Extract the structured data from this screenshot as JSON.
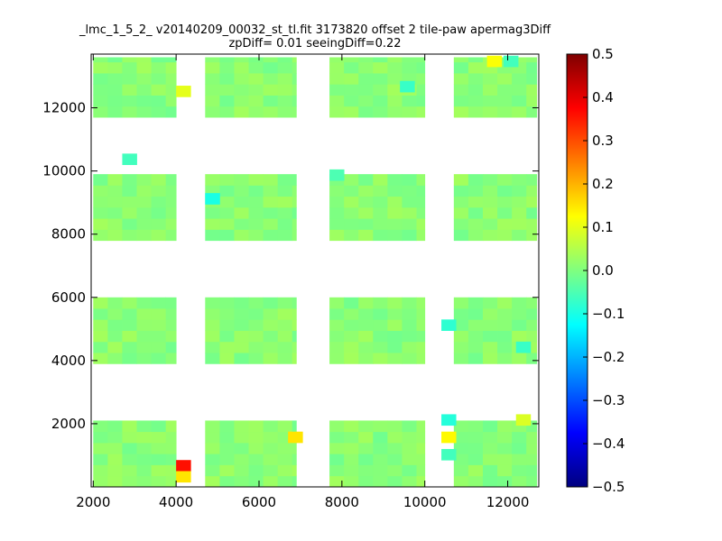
{
  "chart_data": {
    "type": "heatmap",
    "title": "_lmc_1_5_2_ v20140209_00032_st_tl.fit 3173820 offset 2 tile-paw apermag3Diff",
    "subtitle": "zpDiff= 0.01 seeingDiff=0.22",
    "xlabel": "",
    "ylabel": "",
    "xlim": [
      1950,
      12750
    ],
    "ylim": [
      0,
      13700
    ],
    "xticks": [
      2000,
      4000,
      6000,
      8000,
      10000,
      12000
    ],
    "yticks": [
      2000,
      4000,
      6000,
      8000,
      10000,
      12000
    ],
    "xticklabels": [
      "2000",
      "4000",
      "6000",
      "8000",
      "10000",
      "12000"
    ],
    "yticklabels": [
      "2000",
      "4000",
      "6000",
      "8000",
      "10000",
      "12000"
    ],
    "colorbar": {
      "min": -0.5,
      "max": 0.5,
      "ticks": [
        0.5,
        0.4,
        0.3,
        0.2,
        0.1,
        0.0,
        -0.1,
        -0.2,
        -0.3,
        -0.4,
        -0.5
      ],
      "ticklabels": [
        "0.5",
        "0.4",
        "0.3",
        "0.2",
        "0.1",
        "0.0",
        "−0.1",
        "−0.2",
        "−0.3",
        "−0.4",
        "−0.5"
      ],
      "colormap": "jet"
    },
    "cell_size": 350,
    "typical_value": 0.01,
    "blocks": [
      {
        "x": [
          2000,
          4000
        ],
        "y": [
          0,
          2100
        ]
      },
      {
        "x": [
          2000,
          4000
        ],
        "y": [
          3900,
          6000
        ]
      },
      {
        "x": [
          2000,
          4000
        ],
        "y": [
          7800,
          9900
        ]
      },
      {
        "x": [
          2000,
          4000
        ],
        "y": [
          11700,
          13600
        ]
      },
      {
        "x": [
          4700,
          6900
        ],
        "y": [
          0,
          2100
        ]
      },
      {
        "x": [
          4700,
          6900
        ],
        "y": [
          3900,
          6000
        ]
      },
      {
        "x": [
          4700,
          6900
        ],
        "y": [
          7800,
          9900
        ]
      },
      {
        "x": [
          4700,
          6900
        ],
        "y": [
          11700,
          13600
        ]
      },
      {
        "x": [
          7700,
          10000
        ],
        "y": [
          0,
          2100
        ]
      },
      {
        "x": [
          7700,
          10000
        ],
        "y": [
          3900,
          6000
        ]
      },
      {
        "x": [
          7700,
          10000
        ],
        "y": [
          7800,
          9900
        ]
      },
      {
        "x": [
          7700,
          10000
        ],
        "y": [
          11700,
          13600
        ]
      },
      {
        "x": [
          10700,
          12700
        ],
        "y": [
          0,
          2100
        ]
      },
      {
        "x": [
          10700,
          12700
        ],
        "y": [
          3900,
          6000
        ]
      },
      {
        "x": [
          10700,
          12700
        ],
        "y": [
          7800,
          9900
        ]
      },
      {
        "x": [
          10700,
          12700
        ],
        "y": [
          11700,
          13600
        ]
      }
    ],
    "outliers": [
      {
        "x": 4000,
        "y": 500,
        "value": 0.36
      },
      {
        "x": 4000,
        "y": 150,
        "value": 0.15
      },
      {
        "x": 6700,
        "y": 1400,
        "value": 0.15
      },
      {
        "x": 10400,
        "y": 1400,
        "value": 0.13
      },
      {
        "x": 12200,
        "y": 1950,
        "value": 0.09
      },
      {
        "x": 10400,
        "y": 1950,
        "value": -0.09
      },
      {
        "x": 10400,
        "y": 850,
        "value": -0.06
      },
      {
        "x": 10400,
        "y": 4950,
        "value": -0.08
      },
      {
        "x": 12200,
        "y": 4250,
        "value": -0.07
      },
      {
        "x": 4700,
        "y": 8950,
        "value": -0.1
      },
      {
        "x": 4000,
        "y": 12350,
        "value": 0.1
      },
      {
        "x": 11500,
        "y": 13300,
        "value": 0.12
      },
      {
        "x": 11900,
        "y": 13300,
        "value": -0.06
      },
      {
        "x": 9400,
        "y": 12500,
        "value": -0.07
      },
      {
        "x": 2700,
        "y": 10200,
        "value": -0.06
      },
      {
        "x": 7700,
        "y": 9700,
        "value": -0.05
      }
    ]
  }
}
